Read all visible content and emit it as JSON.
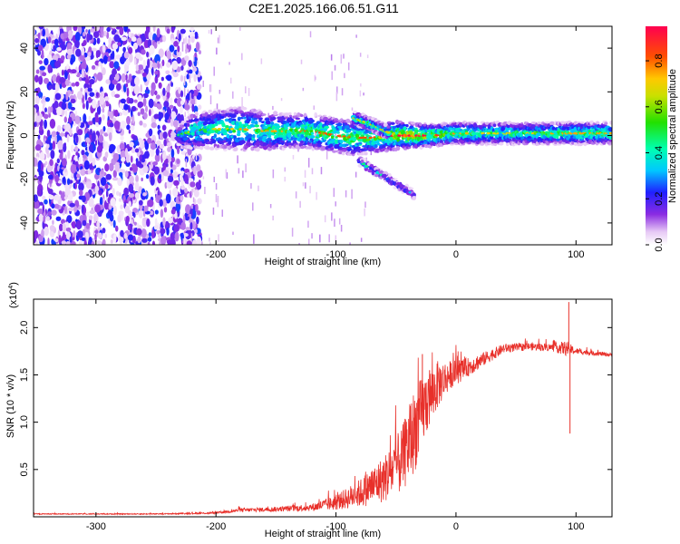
{
  "title": "C2E1.2025.166.06.51.G11",
  "chart_data": [
    {
      "type": "heatmap",
      "xlabel": "Height of straight line (km)",
      "ylabel": "Frequency (Hz)",
      "xlim": [
        -352,
        130
      ],
      "ylim": [
        -50,
        50
      ],
      "x_ticks": [
        -300,
        -200,
        -100,
        0,
        100
      ],
      "x_tick_labels": [
        "-300",
        "-200",
        "-100",
        "0",
        "100"
      ],
      "y_ticks": [
        -40,
        -20,
        0,
        20,
        40
      ],
      "y_tick_labels": [
        "-40",
        "-20",
        "0",
        "20",
        "40"
      ],
      "colorbar": {
        "label": "Normalized spectral amplitude",
        "range": [
          0.0,
          0.95
        ],
        "ticks": [
          0.0,
          0.2,
          0.4,
          0.6,
          0.8
        ],
        "tick_labels": [
          "0.0",
          "0.2",
          "0.4",
          "0.6",
          "0.8"
        ]
      },
      "noise_region": {
        "x_range": [
          -352,
          -213
        ],
        "amplitude": 0.18
      },
      "signal_track": [
        {
          "x": -232,
          "center": 0,
          "width": 4,
          "amplitude": 0.3
        },
        {
          "x": -220,
          "center": 2,
          "width": 8,
          "amplitude": 0.45
        },
        {
          "x": -200,
          "center": 3,
          "width": 9,
          "amplitude": 0.45
        },
        {
          "x": -180,
          "center": 3,
          "width": 10,
          "amplitude": 0.5
        },
        {
          "x": -160,
          "center": 2,
          "width": 9,
          "amplitude": 0.5
        },
        {
          "x": -140,
          "center": 2,
          "width": 8,
          "amplitude": 0.5
        },
        {
          "x": -120,
          "center": 2,
          "width": 8,
          "amplitude": 0.55
        },
        {
          "x": -100,
          "center": 0,
          "width": 8,
          "amplitude": 0.55
        },
        {
          "x": -85,
          "center": -1,
          "width": 8,
          "amplitude": 0.55
        },
        {
          "x": -70,
          "center": -1,
          "width": 7,
          "amplitude": 0.55
        },
        {
          "x": -55,
          "center": 0,
          "width": 7,
          "amplitude": 0.6
        },
        {
          "x": -40,
          "center": 0,
          "width": 6,
          "amplitude": 0.7
        },
        {
          "x": -20,
          "center": 0,
          "width": 5,
          "amplitude": 0.6
        },
        {
          "x": 0,
          "center": 1,
          "width": 5,
          "amplitude": 0.5
        },
        {
          "x": 40,
          "center": 1,
          "width": 5,
          "amplitude": 0.45
        },
        {
          "x": 80,
          "center": 1,
          "width": 5,
          "amplitude": 0.5
        },
        {
          "x": 130,
          "center": 1,
          "width": 5,
          "amplitude": 0.5
        }
      ],
      "branch_track": [
        {
          "x": -85,
          "center": 8,
          "width": 3,
          "amplitude": 0.45
        },
        {
          "x": -70,
          "center": 5,
          "width": 3,
          "amplitude": 0.45
        },
        {
          "x": -55,
          "center": 1,
          "width": 3,
          "amplitude": 0.45
        }
      ],
      "descending_track": [
        {
          "x": -80,
          "center": -12,
          "width": 2,
          "amplitude": 0.3
        },
        {
          "x": -65,
          "center": -17,
          "width": 2,
          "amplitude": 0.3
        },
        {
          "x": -50,
          "center": -22,
          "width": 2,
          "amplitude": 0.25
        },
        {
          "x": -35,
          "center": -27,
          "width": 2,
          "amplitude": 0.2
        }
      ]
    },
    {
      "type": "line",
      "xlabel": "Height of straight line (km)",
      "ylabel": "SNR (10 * v/v)",
      "y_scale_label": "(x10",
      "y_scale_exponent": "4",
      "y_scale_suffix": ")",
      "xlim": [
        -352,
        130
      ],
      "ylim": [
        0,
        2.3
      ],
      "x_ticks": [
        -300,
        -200,
        -100,
        0,
        100
      ],
      "x_tick_labels": [
        "-300",
        "-200",
        "-100",
        "0",
        "100"
      ],
      "y_ticks": [
        0.5,
        1.0,
        1.5,
        2.0
      ],
      "y_tick_labels": [
        "0.5",
        "1.0",
        "1.5",
        "2.0"
      ],
      "series": [
        {
          "name": "SNR",
          "color": "#e8302a",
          "envelope": [
            {
              "x": -352,
              "mean": 0.03,
              "noise": 0.005
            },
            {
              "x": -250,
              "mean": 0.03,
              "noise": 0.005
            },
            {
              "x": -200,
              "mean": 0.04,
              "noise": 0.01
            },
            {
              "x": -180,
              "mean": 0.07,
              "noise": 0.02
            },
            {
              "x": -150,
              "mean": 0.08,
              "noise": 0.025
            },
            {
              "x": -120,
              "mean": 0.1,
              "noise": 0.04
            },
            {
              "x": -100,
              "mean": 0.15,
              "noise": 0.08
            },
            {
              "x": -80,
              "mean": 0.25,
              "noise": 0.15
            },
            {
              "x": -60,
              "mean": 0.4,
              "noise": 0.25
            },
            {
              "x": -45,
              "mean": 0.6,
              "noise": 0.35
            },
            {
              "x": -35,
              "mean": 0.9,
              "noise": 0.45
            },
            {
              "x": -25,
              "mean": 1.2,
              "noise": 0.35
            },
            {
              "x": -15,
              "mean": 1.4,
              "noise": 0.25
            },
            {
              "x": -5,
              "mean": 1.5,
              "noise": 0.15
            },
            {
              "x": 10,
              "mean": 1.58,
              "noise": 0.1
            },
            {
              "x": 25,
              "mean": 1.68,
              "noise": 0.07
            },
            {
              "x": 40,
              "mean": 1.78,
              "noise": 0.05
            },
            {
              "x": 60,
              "mean": 1.8,
              "noise": 0.04
            },
            {
              "x": 80,
              "mean": 1.79,
              "noise": 0.04
            },
            {
              "x": 92,
              "mean": 1.78,
              "noise": 0.08
            },
            {
              "x": 100,
              "mean": 1.75,
              "noise": 0.03
            },
            {
              "x": 130,
              "mean": 1.71,
              "noise": 0.02
            }
          ],
          "spikes": [
            {
              "x": -28,
              "y": 1.72
            },
            {
              "x": -22,
              "y": 1.55
            },
            {
              "x": 94,
              "y": 2.27
            },
            {
              "x": 95,
              "y": 0.88
            }
          ]
        }
      ]
    }
  ]
}
